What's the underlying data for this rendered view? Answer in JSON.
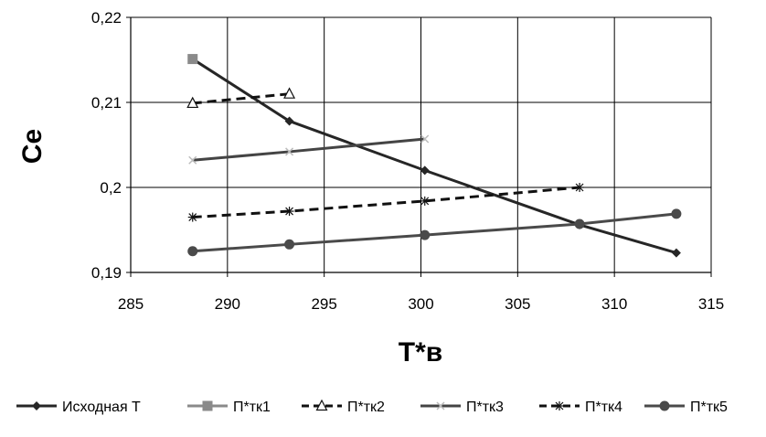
{
  "chart_data": {
    "type": "line",
    "title": "",
    "xlabel": "T*в",
    "ylabel": "Ce",
    "xlim": [
      285,
      315
    ],
    "ylim": [
      0.19,
      0.22
    ],
    "x_ticks": [
      "285",
      "290",
      "295",
      "300",
      "305",
      "310",
      "315"
    ],
    "y_ticks": [
      "0,19",
      "0,2",
      "0,21",
      "0,22"
    ],
    "grid": true,
    "legend_position": "bottom",
    "series": [
      {
        "name": "Исходная T",
        "marker": "diamond",
        "dash": "solid",
        "color": "#262626",
        "x": [
          288.2,
          293.2,
          300.2,
          308.2,
          313.2
        ],
        "y": [
          0.2151,
          0.2078,
          0.202,
          0.1956,
          0.1923
        ]
      },
      {
        "name": "П*тк1",
        "marker": "square",
        "dash": "solid",
        "color": "#8a8a8a",
        "x": [
          288.2
        ],
        "y": [
          0.2151
        ]
      },
      {
        "name": "П*тк2",
        "marker": "triangle",
        "dash": "dashed",
        "color": "#111111",
        "x": [
          288.2,
          293.2
        ],
        "y": [
          0.2099,
          0.211
        ]
      },
      {
        "name": "П*тк3",
        "marker": "x",
        "dash": "solid",
        "color": "#444444",
        "x": [
          288.2,
          293.2,
          300.2
        ],
        "y": [
          0.2032,
          0.2042,
          0.2057
        ]
      },
      {
        "name": "П*тк4",
        "marker": "star",
        "dash": "dashed",
        "color": "#111111",
        "x": [
          288.2,
          293.2,
          300.2,
          308.2
        ],
        "y": [
          0.1965,
          0.1972,
          0.1984,
          0.2
        ]
      },
      {
        "name": "П*тк5",
        "marker": "circle",
        "dash": "solid",
        "color": "#4a4a4a",
        "x": [
          288.2,
          293.2,
          300.2,
          308.2,
          313.2
        ],
        "y": [
          0.1925,
          0.1933,
          0.1944,
          0.1957,
          0.1969
        ]
      }
    ]
  }
}
